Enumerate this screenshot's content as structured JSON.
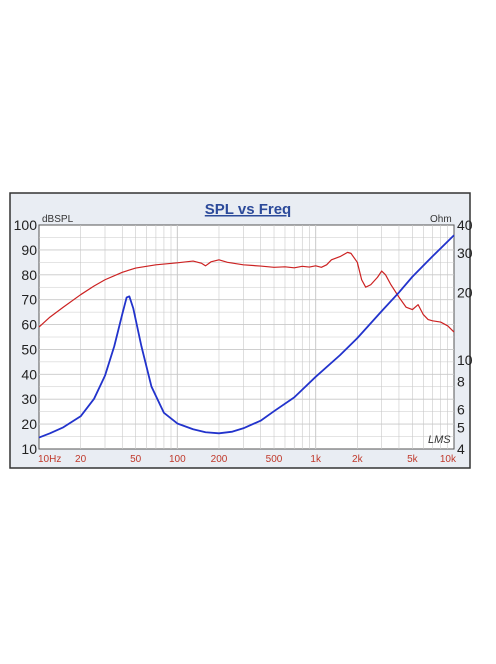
{
  "chart_data": {
    "type": "line",
    "title": "SPL vs Freq",
    "left_unit": "dBSPL",
    "right_unit": "Ohm",
    "watermark": "LMS",
    "x_scale": "log",
    "xlim": [
      10,
      10000
    ],
    "x_ticks": [
      {
        "value": 10,
        "label": "10Hz"
      },
      {
        "value": 20,
        "label": "20"
      },
      {
        "value": 50,
        "label": "50"
      },
      {
        "value": 100,
        "label": "100"
      },
      {
        "value": 200,
        "label": "200"
      },
      {
        "value": 500,
        "label": "500"
      },
      {
        "value": 1000,
        "label": "1k"
      },
      {
        "value": 2000,
        "label": "2k"
      },
      {
        "value": 5000,
        "label": "5k"
      },
      {
        "value": 10000,
        "label": "10k"
      }
    ],
    "ylim_left": [
      10,
      100
    ],
    "y_ticks_left": [
      "10",
      "20",
      "30",
      "40",
      "50",
      "60",
      "70",
      "80",
      "90",
      "100"
    ],
    "y_scale_right": "log",
    "ylim_right": [
      4,
      40
    ],
    "y_ticks_right": [
      {
        "value": 4,
        "label": "4"
      },
      {
        "value": 5,
        "label": "5"
      },
      {
        "value": 6,
        "label": "6"
      },
      {
        "value": 8,
        "label": "8"
      },
      {
        "value": 10,
        "label": "10"
      },
      {
        "value": 20,
        "label": "20"
      },
      {
        "value": 30,
        "label": "30"
      },
      {
        "value": 40,
        "label": "40"
      }
    ],
    "grid": true,
    "colors": {
      "spl": "#cc2222",
      "impedance": "#2233cc",
      "title": "#2c4a9a",
      "axis_text": "#c0392b",
      "grid": "#c8c8c8",
      "frame": "#444444"
    },
    "series": [
      {
        "axis": "left",
        "color": "#cc2222",
        "points": [
          [
            10,
            59
          ],
          [
            12,
            63
          ],
          [
            15,
            67
          ],
          [
            20,
            72
          ],
          [
            25,
            75.5
          ],
          [
            30,
            78
          ],
          [
            40,
            81
          ],
          [
            50,
            82.7
          ],
          [
            70,
            84
          ],
          [
            100,
            84.8
          ],
          [
            130,
            85.5
          ],
          [
            150,
            84.6
          ],
          [
            160,
            83.6
          ],
          [
            175,
            85.2
          ],
          [
            200,
            86
          ],
          [
            230,
            85
          ],
          [
            300,
            84
          ],
          [
            400,
            83.5
          ],
          [
            500,
            83
          ],
          [
            600,
            83.2
          ],
          [
            700,
            82.8
          ],
          [
            800,
            83.4
          ],
          [
            900,
            83.1
          ],
          [
            1000,
            83.6
          ],
          [
            1100,
            83
          ],
          [
            1200,
            84
          ],
          [
            1300,
            86
          ],
          [
            1500,
            87.3
          ],
          [
            1700,
            89
          ],
          [
            1800,
            88.6
          ],
          [
            2000,
            85
          ],
          [
            2150,
            78
          ],
          [
            2300,
            75
          ],
          [
            2500,
            76
          ],
          [
            2800,
            79
          ],
          [
            3000,
            81.5
          ],
          [
            3200,
            80
          ],
          [
            3500,
            76
          ],
          [
            4000,
            71
          ],
          [
            4500,
            67
          ],
          [
            5000,
            66
          ],
          [
            5500,
            68
          ],
          [
            6000,
            64
          ],
          [
            6500,
            62
          ],
          [
            7000,
            61.5
          ],
          [
            8000,
            61
          ],
          [
            9000,
            59.5
          ],
          [
            10000,
            57
          ]
        ]
      },
      {
        "axis": "right",
        "color": "#2233cc",
        "points": [
          [
            10,
            4.5
          ],
          [
            12,
            4.7
          ],
          [
            15,
            5
          ],
          [
            20,
            5.6
          ],
          [
            25,
            6.7
          ],
          [
            30,
            8.5
          ],
          [
            35,
            11.5
          ],
          [
            40,
            16
          ],
          [
            43,
            19
          ],
          [
            45,
            19.2
          ],
          [
            48,
            17
          ],
          [
            55,
            11.5
          ],
          [
            65,
            7.6
          ],
          [
            80,
            5.8
          ],
          [
            100,
            5.2
          ],
          [
            130,
            4.9
          ],
          [
            160,
            4.75
          ],
          [
            200,
            4.7
          ],
          [
            250,
            4.78
          ],
          [
            300,
            4.95
          ],
          [
            400,
            5.35
          ],
          [
            500,
            5.9
          ],
          [
            700,
            6.8
          ],
          [
            1000,
            8.4
          ],
          [
            1500,
            10.5
          ],
          [
            2000,
            12.5
          ],
          [
            3000,
            16.5
          ],
          [
            4000,
            20
          ],
          [
            5000,
            23.5
          ],
          [
            7000,
            29
          ],
          [
            10000,
            36
          ]
        ]
      }
    ]
  }
}
